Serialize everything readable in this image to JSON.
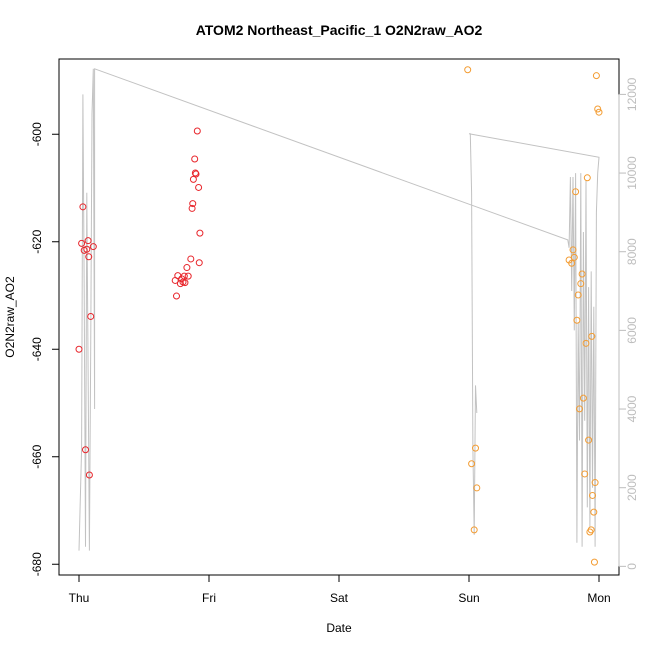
{
  "chart_data": {
    "type": "scatter",
    "title": "ATOM2 Northeast_Pacific_1 O2N2raw_AO2",
    "xlabel": "Date",
    "ylabel": "O2N2raw_AO2",
    "x_ticks": [
      "Thu",
      "Fri",
      "Sat",
      "Sun",
      "Mon"
    ],
    "x_unit": "days from Thu 00:00",
    "xlim": [
      0,
      4
    ],
    "ylim": [
      -682,
      -586
    ],
    "y_ticks": [
      -600,
      -620,
      -640,
      -660,
      -680
    ],
    "y2lim": [
      -220,
      12900
    ],
    "y2_ticks": [
      0,
      2000,
      4000,
      6000,
      8000,
      10000,
      12000
    ],
    "grid": false,
    "colors": {
      "series_a": "#e8252b",
      "series_b": "#f39c32",
      "altitude_line": "#c2c2c2",
      "axis": "#000000",
      "right_axis": "#bdbdbd"
    },
    "series": [
      {
        "points": [
          [
            0.0,
            -640.0
          ],
          [
            0.02,
            -620.3
          ],
          [
            0.03,
            -613.5
          ],
          [
            0.04,
            -621.6
          ],
          [
            0.05,
            -658.7
          ],
          [
            0.06,
            -621.4
          ],
          [
            0.07,
            -619.8
          ],
          [
            0.075,
            -622.8
          ],
          [
            0.08,
            -663.4
          ],
          [
            0.09,
            -633.9
          ],
          [
            0.11,
            -620.9
          ]
        ]
      },
      {
        "points": [
          [
            0.74,
            -627.2
          ],
          [
            0.75,
            -630.1
          ],
          [
            0.76,
            -626.3
          ],
          [
            0.78,
            -627.8
          ],
          [
            0.79,
            -626.9
          ],
          [
            0.8,
            -627.5
          ],
          [
            0.81,
            -626.4
          ],
          [
            0.815,
            -627.6
          ],
          [
            0.83,
            -624.8
          ],
          [
            0.84,
            -626.4
          ],
          [
            0.86,
            -623.2
          ],
          [
            0.87,
            -613.8
          ],
          [
            0.875,
            -612.9
          ],
          [
            0.88,
            -608.4
          ],
          [
            0.89,
            -604.6
          ],
          [
            0.895,
            -607.2
          ],
          [
            0.9,
            -607.4
          ],
          [
            0.91,
            -599.4
          ],
          [
            0.92,
            -609.9
          ],
          [
            0.925,
            -623.9
          ],
          [
            0.93,
            -618.4
          ]
        ]
      },
      {
        "points": [
          [
            2.99,
            -588.0
          ],
          [
            3.02,
            -661.3
          ],
          [
            3.04,
            -673.6
          ],
          [
            3.05,
            -658.4
          ],
          [
            3.06,
            -665.8
          ],
          [
            3.77,
            -623.4
          ],
          [
            3.79,
            -624.0
          ],
          [
            3.8,
            -621.5
          ],
          [
            3.81,
            -622.9
          ],
          [
            3.82,
            -610.7
          ],
          [
            3.83,
            -634.6
          ],
          [
            3.84,
            -629.9
          ],
          [
            3.85,
            -651.1
          ],
          [
            3.86,
            -627.8
          ],
          [
            3.87,
            -626.0
          ],
          [
            3.88,
            -649.1
          ],
          [
            3.89,
            -663.2
          ],
          [
            3.9,
            -638.9
          ],
          [
            3.91,
            -608.1
          ],
          [
            3.92,
            -656.9
          ],
          [
            3.93,
            -674.0
          ],
          [
            3.94,
            -673.6
          ],
          [
            3.945,
            -637.6
          ],
          [
            3.95,
            -667.2
          ],
          [
            3.96,
            -670.3
          ],
          [
            3.965,
            -679.6
          ],
          [
            3.97,
            -664.8
          ],
          [
            3.98,
            -589.1
          ],
          [
            3.99,
            -595.3
          ],
          [
            4.0,
            -595.9
          ]
        ]
      }
    ],
    "altitude_line": [
      [
        0.0,
        400
      ],
      [
        0.02,
        3000
      ],
      [
        0.03,
        12000
      ],
      [
        0.04,
        7000
      ],
      [
        0.05,
        500
      ],
      [
        0.06,
        9500
      ],
      [
        0.07,
        5000
      ],
      [
        0.08,
        400
      ],
      [
        0.09,
        5500
      ],
      [
        0.1,
        11500
      ],
      [
        0.11,
        12650
      ],
      [
        0.12,
        4000
      ],
      [
        0.12,
        12650
      ],
      [
        3.76,
        8300
      ],
      [
        3.77,
        8100
      ],
      [
        3.78,
        9900
      ],
      [
        3.79,
        7000
      ],
      [
        3.8,
        9900
      ],
      [
        3.81,
        6000
      ],
      [
        3.82,
        10000
      ],
      [
        3.83,
        600
      ],
      [
        3.84,
        6200
      ],
      [
        3.85,
        3200
      ],
      [
        3.86,
        10000
      ],
      [
        3.87,
        500
      ],
      [
        3.88,
        8500
      ],
      [
        3.89,
        3700
      ],
      [
        3.9,
        9800
      ],
      [
        3.91,
        1500
      ],
      [
        3.92,
        7100
      ],
      [
        3.93,
        1000
      ],
      [
        3.94,
        7500
      ],
      [
        3.95,
        2000
      ],
      [
        3.96,
        6600
      ],
      [
        3.97,
        500
      ],
      [
        3.98,
        9000
      ],
      [
        3.99,
        10000
      ],
      [
        4.0,
        10400
      ],
      [
        3.0,
        11000
      ],
      [
        3.01,
        11000
      ],
      [
        3.02,
        9500
      ],
      [
        3.03,
        3000
      ],
      [
        3.04,
        800
      ],
      [
        3.05,
        4600
      ],
      [
        3.06,
        3900
      ]
    ]
  }
}
